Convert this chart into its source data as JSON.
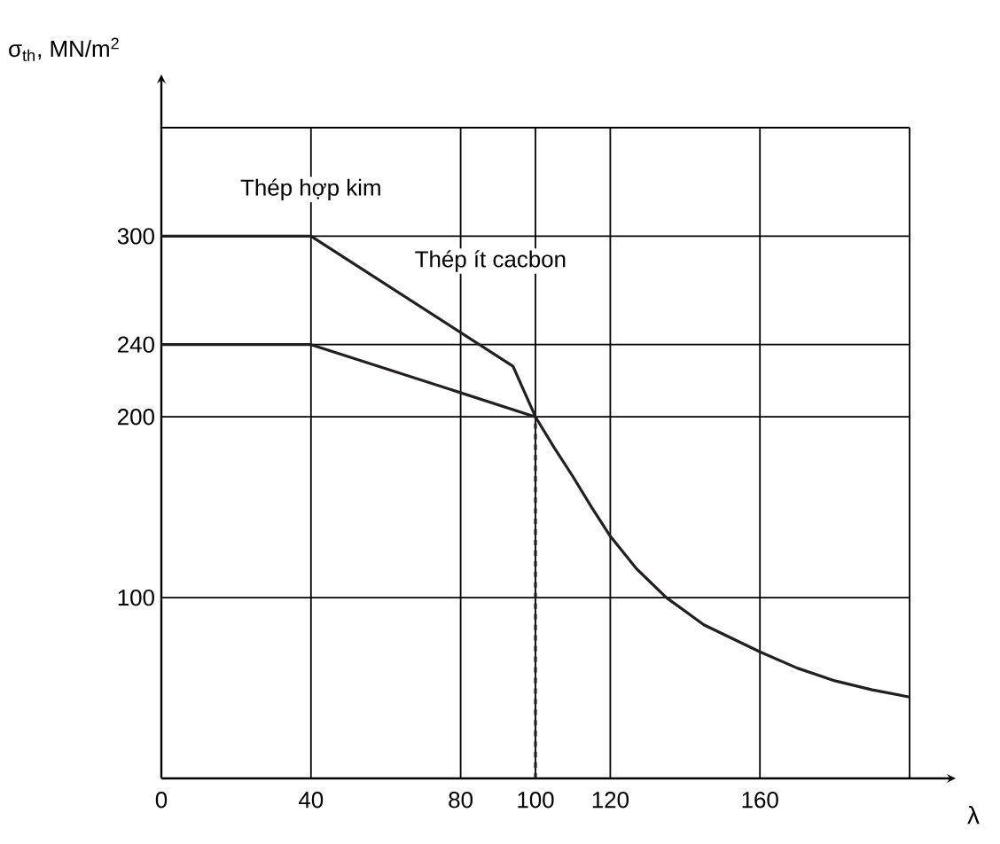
{
  "chart_data": {
    "type": "line",
    "ylabel": "σ$_{th}$, MN/m$^{2}$",
    "xlabel": "λ",
    "xlim": [
      0,
      200
    ],
    "ylim": [
      0,
      360
    ],
    "xticks": [
      0,
      40,
      80,
      100,
      120,
      160,
      {
        "value": 200,
        "label": null
      }
    ],
    "yticks": [
      100,
      200,
      240,
      300,
      {
        "value": 360,
        "label": null
      }
    ],
    "grid": true,
    "marker": "none",
    "series": [
      {
        "color": "#231f20",
        "x": [
          0,
          40,
          94,
          100,
          105,
          110,
          115,
          120,
          127,
          135,
          145,
          160,
          170,
          180,
          190,
          200
        ],
        "values": [
          300,
          300,
          228,
          200,
          183,
          167,
          150,
          134,
          116,
          100,
          85,
          70,
          61,
          54,
          49,
          45
        ]
      },
      {
        "color": "#231f20",
        "x": [
          0,
          40,
          100
        ],
        "values": [
          240,
          240,
          200
        ]
      },
      {
        "color": "#231f20",
        "line_style": "dashed",
        "x": [
          100,
          100
        ],
        "values": [
          0,
          200
        ]
      }
    ],
    "annotations": [
      "Thép hợp kim",
      "Thép ít cacbon"
    ]
  }
}
